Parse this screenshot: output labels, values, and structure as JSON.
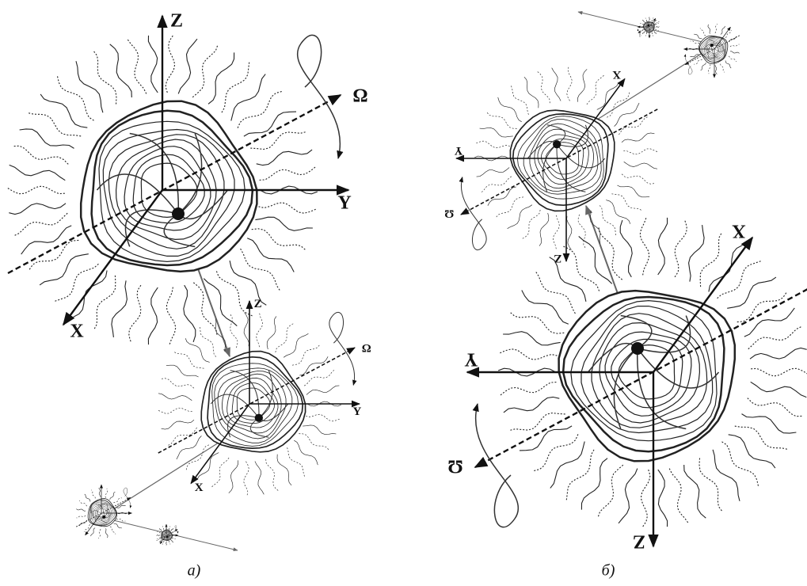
{
  "panels": [
    {
      "caption": "a)",
      "large": {
        "z": "Z",
        "y": "Y",
        "x": "X",
        "omega": "Ω"
      },
      "medium": {
        "z": "Z",
        "y": "Y",
        "x": "X",
        "omega": "Ω"
      }
    },
    {
      "caption": "б)",
      "large": {
        "z": "Z",
        "y": "Y",
        "x": "X",
        "omega": "Ω"
      },
      "medium": {
        "z": "Z",
        "y": "Y",
        "x": "X",
        "omega": "Ω"
      }
    }
  ]
}
